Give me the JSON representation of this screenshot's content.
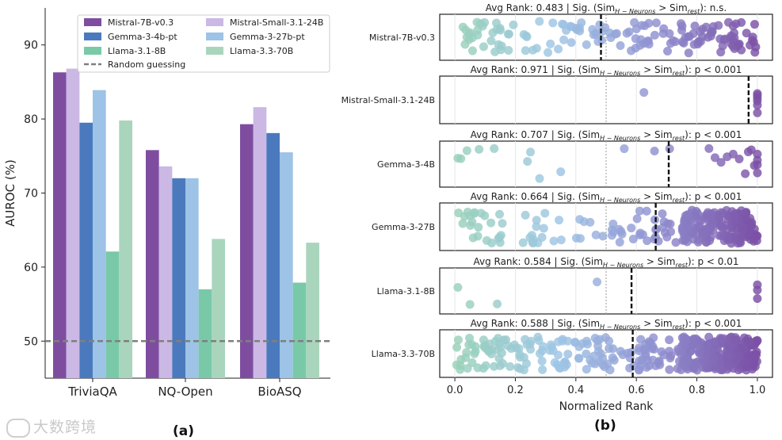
{
  "panels": {
    "a_caption": "(a)",
    "b_caption": "(b)"
  },
  "watermark": {
    "text": "大数跨境"
  },
  "chart_data": [
    {
      "type": "bar",
      "categories": [
        "TriviaQA",
        "NQ-Open",
        "BioASQ"
      ],
      "ylabel": "AUROC (%)",
      "xlabel": "",
      "ylim": [
        45,
        95
      ],
      "yticks": [
        50,
        60,
        70,
        80,
        90
      ],
      "grid": false,
      "legend_placement": "top-center",
      "series": [
        {
          "name": "Mistral-7B-v0.3",
          "color": "#7e4da0",
          "values": [
            86.3,
            75.8,
            79.3
          ]
        },
        {
          "name": "Mistral-Small-3.1-24B",
          "color": "#cbb8e4",
          "values": [
            86.8,
            73.6,
            81.6
          ]
        },
        {
          "name": "Gemma-3-4b-pt",
          "color": "#4b79bd",
          "values": [
            79.5,
            72.0,
            78.1
          ]
        },
        {
          "name": "Gemma-3-27b-pt",
          "color": "#9dc3e6",
          "values": [
            83.9,
            72.0,
            75.5
          ]
        },
        {
          "name": "Llama-3.1-8B",
          "color": "#79c9a9",
          "values": [
            62.1,
            57.0,
            57.9
          ]
        },
        {
          "name": "Llama-3.3-70B",
          "color": "#a9d5bd",
          "values": [
            79.8,
            63.8,
            63.3
          ]
        }
      ],
      "reference_line": {
        "name": "Random guessing",
        "value": 50,
        "color": "#7f7f7f"
      }
    },
    {
      "type": "scatter",
      "xlabel": "Normalized Rank",
      "xlim": [
        -0.05,
        1.05
      ],
      "xticks": [
        0.0,
        0.2,
        0.4,
        0.6,
        0.8,
        1.0
      ],
      "xtick_labels": [
        "0.0",
        "0.2",
        "0.4",
        "0.6",
        "0.8",
        "1.0"
      ],
      "reference_x": 0.5,
      "color_scale": [
        "#98d1b8",
        "#9ec6e6",
        "#8f8fd0",
        "#7b50a5"
      ],
      "rows": [
        {
          "model": "Mistral-7B-v0.3",
          "avg_rank_text": "Avg Rank: 0.483",
          "sig_text": "Sig. (Sim",
          "sig_sub1": "H − Neurons",
          "sig_mid": " > Sim",
          "sig_sub2": "rest",
          "sig_result": "): n.s.",
          "avg_rank": 0.483,
          "n": 150,
          "seed": 11,
          "extra_high": 0.25
        },
        {
          "model": "Mistral-Small-3.1-24B",
          "avg_rank_text": "Avg Rank: 0.971",
          "sig_text": "Sig. (Sim",
          "sig_sub1": "H − Neurons",
          "sig_mid": " > Sim",
          "sig_sub2": "rest",
          "sig_result": "): p < 0.001",
          "avg_rank": 0.971,
          "points": [
            0.625,
            1.0,
            1.0,
            1.0,
            1.0,
            1.0,
            1.0
          ]
        },
        {
          "model": "Gemma-3-4B",
          "avg_rank_text": "Avg Rank: 0.707",
          "sig_text": "Sig. (Sim",
          "sig_sub1": "H − Neurons",
          "sig_mid": " > Sim",
          "sig_sub2": "rest",
          "sig_result": "): p < 0.001",
          "avg_rank": 0.707,
          "points": [
            0.01,
            0.02,
            0.04,
            0.08,
            0.13,
            0.24,
            0.25,
            0.28,
            0.35,
            0.56,
            0.66,
            0.71,
            0.84,
            0.86,
            0.88,
            0.9,
            0.92,
            0.94,
            0.96,
            0.97,
            0.98,
            0.99,
            1.0,
            1.0,
            1.0,
            1.0
          ]
        },
        {
          "model": "Gemma-3-27B",
          "avg_rank_text": "Avg Rank: 0.664",
          "sig_text": "Sig. (Sim",
          "sig_sub1": "H − Neurons",
          "sig_mid": " > Sim",
          "sig_sub2": "rest",
          "sig_result": "): p < 0.001",
          "avg_rank": 0.664,
          "n": 260,
          "seed": 23,
          "extra_high": 0.55
        },
        {
          "model": "Llama-3.1-8B",
          "avg_rank_text": "Avg Rank: 0.584",
          "sig_text": "Sig. (Sim",
          "sig_sub1": "H − Neurons",
          "sig_mid": " > Sim",
          "sig_sub2": "rest",
          "sig_result": "): p < 0.01",
          "avg_rank": 0.584,
          "points": [
            0.01,
            0.05,
            0.14,
            0.47,
            1.0,
            1.0,
            1.0
          ]
        },
        {
          "model": "Llama-3.3-70B",
          "avg_rank_text": "Avg Rank: 0.588",
          "sig_text": "Sig. (Sim",
          "sig_sub1": "H − Neurons",
          "sig_mid": " > Sim",
          "sig_sub2": "rest",
          "sig_result": "): p < 0.001",
          "avg_rank": 0.588,
          "n": 420,
          "seed": 37,
          "extra_high": 0.45
        }
      ]
    }
  ]
}
